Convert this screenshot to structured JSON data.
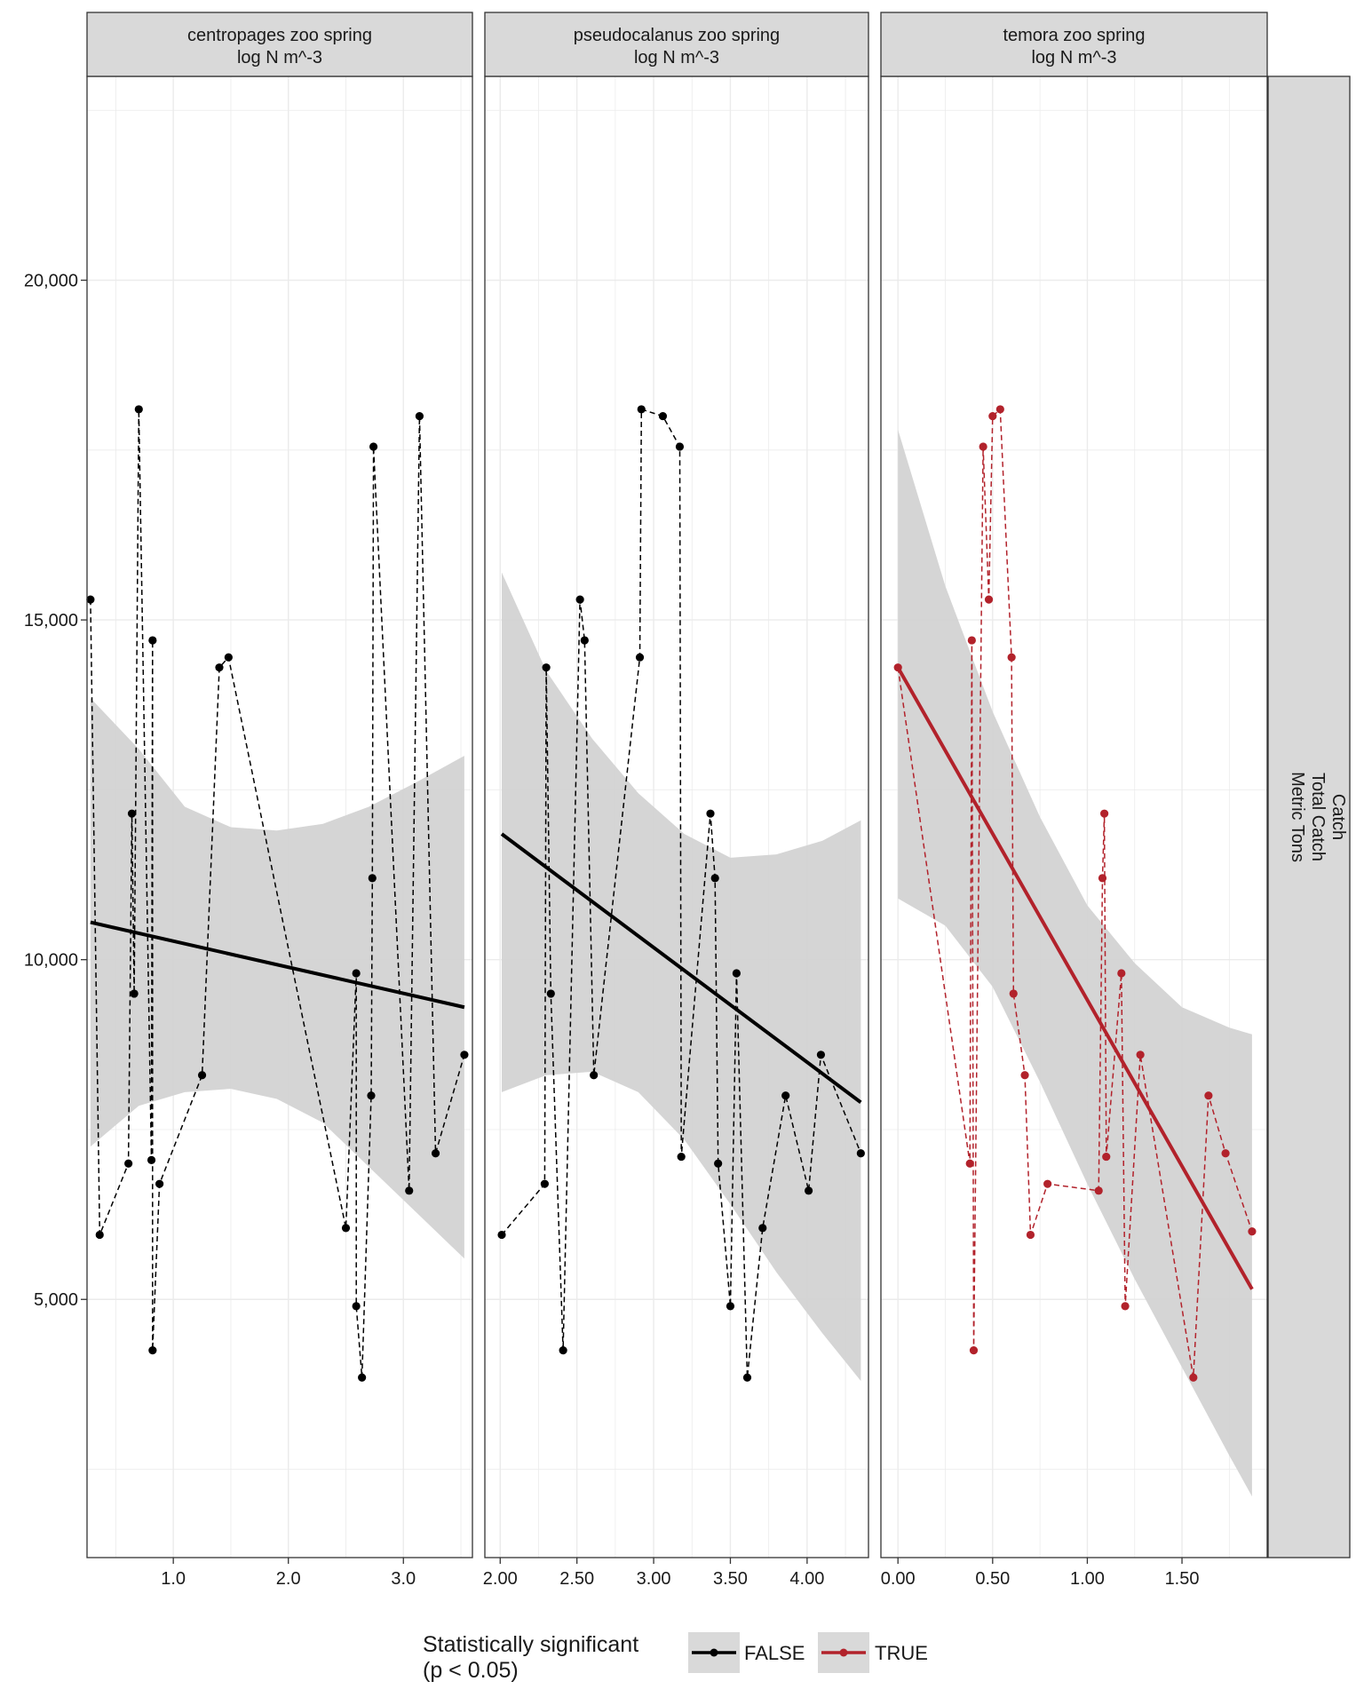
{
  "legend": {
    "title_line1": "Statistically significant",
    "title_line2": "(p < 0.05)",
    "entries": [
      {
        "label": "FALSE",
        "color": "#000000"
      },
      {
        "label": "TRUE",
        "color": "#b2222b"
      }
    ]
  },
  "right_strip": {
    "lines": [
      "Catch",
      "Total Catch",
      "Metric Tons"
    ]
  },
  "colors": {
    "not_significant": "#000000",
    "significant": "#b2222b",
    "ribbon": "#d3d3d3",
    "strip_bg": "#d9d9d9",
    "grid": "#ebebeb"
  },
  "chart_data": [
    {
      "type": "scatter",
      "title_line1": "centropages zoo spring",
      "title_line2": "log N m^-3",
      "significant": false,
      "xlim": [
        0.25,
        3.6
      ],
      "ylim": [
        1200,
        23000
      ],
      "x_ticks": [
        1.0,
        2.0,
        3.0
      ],
      "x_tick_labels": [
        "1.0",
        "2.0",
        "3.0"
      ],
      "y_ticks": [
        5000,
        10000,
        15000,
        20000
      ],
      "y_tick_labels": [
        "5,000",
        "10,000",
        "15,000",
        "20,000"
      ],
      "points": [
        [
          0.28,
          15300
        ],
        [
          0.36,
          5950
        ],
        [
          0.61,
          7000
        ],
        [
          0.64,
          12150
        ],
        [
          0.66,
          9500
        ],
        [
          0.7,
          18100
        ],
        [
          0.81,
          7050
        ],
        [
          0.82,
          14700
        ],
        [
          0.82,
          4250
        ],
        [
          0.88,
          6700
        ],
        [
          1.25,
          8300
        ],
        [
          1.4,
          14300
        ],
        [
          1.48,
          14450
        ],
        [
          2.5,
          6050
        ],
        [
          2.59,
          9800
        ],
        [
          2.59,
          4900
        ],
        [
          2.64,
          3850
        ],
        [
          2.72,
          8000
        ],
        [
          2.73,
          11200
        ],
        [
          2.74,
          17550
        ],
        [
          3.05,
          6600
        ],
        [
          3.14,
          18000
        ],
        [
          3.28,
          7150
        ],
        [
          3.53,
          8600
        ]
      ],
      "fit": {
        "x": [
          0.28,
          3.53
        ],
        "y": [
          10550,
          9300
        ]
      },
      "ribbon": {
        "x": [
          0.28,
          0.7,
          1.1,
          1.5,
          1.9,
          2.3,
          2.7,
          3.1,
          3.53
        ],
        "lower": [
          7250,
          7850,
          8050,
          8100,
          7950,
          7600,
          6950,
          6300,
          5600
        ],
        "upper": [
          13850,
          13100,
          12250,
          11950,
          11900,
          12000,
          12250,
          12600,
          13000
        ]
      }
    },
    {
      "type": "scatter",
      "title_line1": "pseudocalanus zoo spring",
      "title_line2": "log N m^-3",
      "significant": false,
      "xlim": [
        1.9,
        4.4
      ],
      "ylim": [
        1200,
        23000
      ],
      "x_ticks": [
        2.0,
        2.5,
        3.0,
        3.5,
        4.0
      ],
      "x_tick_labels": [
        "2.00",
        "2.50",
        "3.00",
        "3.50",
        "4.00"
      ],
      "y_ticks": [
        5000,
        10000,
        15000,
        20000
      ],
      "y_tick_labels": [
        "5,000",
        "10,000",
        "15,000",
        "20,000"
      ],
      "points": [
        [
          2.01,
          5950
        ],
        [
          2.29,
          6700
        ],
        [
          2.3,
          14300
        ],
        [
          2.33,
          9500
        ],
        [
          2.41,
          4250
        ],
        [
          2.52,
          15300
        ],
        [
          2.55,
          14700
        ],
        [
          2.61,
          8300
        ],
        [
          2.91,
          14450
        ],
        [
          2.92,
          18100
        ],
        [
          3.06,
          18000
        ],
        [
          3.17,
          17550
        ],
        [
          3.18,
          7100
        ],
        [
          3.37,
          12150
        ],
        [
          3.4,
          11200
        ],
        [
          3.42,
          7000
        ],
        [
          3.5,
          4900
        ],
        [
          3.54,
          9800
        ],
        [
          3.61,
          3850
        ],
        [
          3.71,
          6050
        ],
        [
          3.86,
          8000
        ],
        [
          4.01,
          6600
        ],
        [
          4.09,
          8600
        ],
        [
          4.35,
          7150
        ]
      ],
      "fit": {
        "x": [
          2.01,
          4.35
        ],
        "y": [
          11850,
          7900
        ]
      },
      "ribbon": {
        "x": [
          2.01,
          2.3,
          2.6,
          2.9,
          3.2,
          3.5,
          3.8,
          4.1,
          4.35
        ],
        "lower": [
          8050,
          8300,
          8350,
          8050,
          7350,
          6400,
          5400,
          4500,
          3800
        ],
        "upper": [
          15700,
          14250,
          13250,
          12450,
          11850,
          11500,
          11550,
          11750,
          12050
        ]
      }
    },
    {
      "type": "scatter",
      "title_line1": "temora zoo spring",
      "title_line2": "log N m^-3",
      "significant": true,
      "xlim": [
        -0.09,
        1.95
      ],
      "ylim": [
        1200,
        23000
      ],
      "x_ticks": [
        0.0,
        0.5,
        1.0,
        1.5
      ],
      "x_tick_labels": [
        "0.00",
        "0.50",
        "1.00",
        "1.50"
      ],
      "y_ticks": [
        5000,
        10000,
        15000,
        20000
      ],
      "y_tick_labels": [
        "5,000",
        "10,000",
        "15,000",
        "20,000"
      ],
      "points": [
        [
          0.0,
          14300
        ],
        [
          0.38,
          7000
        ],
        [
          0.39,
          14700
        ],
        [
          0.4,
          4250
        ],
        [
          0.45,
          17550
        ],
        [
          0.48,
          15300
        ],
        [
          0.5,
          18000
        ],
        [
          0.54,
          18100
        ],
        [
          0.6,
          14450
        ],
        [
          0.61,
          9500
        ],
        [
          0.67,
          8300
        ],
        [
          0.7,
          5950
        ],
        [
          0.79,
          6700
        ],
        [
          1.06,
          6600
        ],
        [
          1.08,
          11200
        ],
        [
          1.09,
          12150
        ],
        [
          1.1,
          7100
        ],
        [
          1.18,
          9800
        ],
        [
          1.2,
          4900
        ],
        [
          1.28,
          8600
        ],
        [
          1.56,
          3850
        ],
        [
          1.64,
          8000
        ],
        [
          1.73,
          7150
        ],
        [
          1.87,
          6000
        ]
      ],
      "fit": {
        "x": [
          0.0,
          1.87
        ],
        "y": [
          14300,
          5150
        ]
      },
      "ribbon": {
        "x": [
          0.0,
          0.25,
          0.5,
          0.75,
          1.0,
          1.25,
          1.5,
          1.75,
          1.87
        ],
        "lower": [
          10900,
          10500,
          9600,
          8200,
          6700,
          5300,
          4000,
          2700,
          2100
        ],
        "upper": [
          17800,
          15500,
          13650,
          12100,
          10800,
          9950,
          9300,
          9000,
          8900
        ]
      }
    }
  ]
}
